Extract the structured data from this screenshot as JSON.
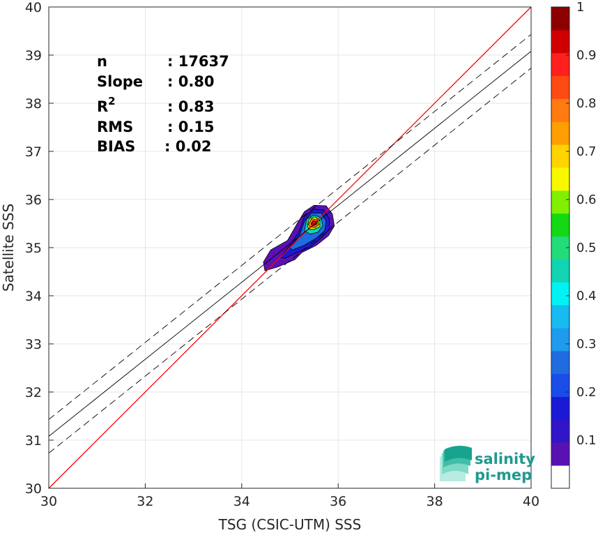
{
  "chart_data": {
    "type": "scatter",
    "title": "",
    "xlabel": "TSG (CSIC-UTM) SSS",
    "ylabel": "Satellite SSS",
    "xlim": [
      30,
      40
    ],
    "ylim": [
      30,
      40
    ],
    "x_ticks": [
      "30",
      "32",
      "34",
      "36",
      "38",
      "40"
    ],
    "y_ticks": [
      "30",
      "31",
      "32",
      "33",
      "34",
      "35",
      "36",
      "37",
      "38",
      "39",
      "40"
    ],
    "grid": true,
    "stats": [
      {
        "label": "n",
        "value": ": 17637"
      },
      {
        "label": "Slope",
        "value": ": 0.80"
      },
      {
        "label": "R",
        "sup": "2",
        "value": ": 0.83"
      },
      {
        "label": "RMS",
        "value": ": 0.15"
      },
      {
        "label": "BIAS",
        "value": ": 0.02"
      }
    ],
    "lines": [
      {
        "name": "identity",
        "color": "#ff0000",
        "style": "solid",
        "x": [
          30,
          40
        ],
        "y": [
          30,
          40
        ]
      },
      {
        "name": "regression",
        "color": "#000000",
        "style": "solid",
        "x": [
          30,
          40
        ],
        "y": [
          31.08,
          39.08
        ]
      },
      {
        "name": "regression-upper",
        "color": "#000000",
        "style": "dashed",
        "x": [
          30,
          40
        ],
        "y": [
          31.43,
          39.43
        ]
      },
      {
        "name": "regression-lower",
        "color": "#000000",
        "style": "dashed",
        "x": [
          30,
          40
        ],
        "y": [
          30.73,
          38.73
        ]
      }
    ],
    "density_contours": [
      {
        "level": 0.05,
        "color": "#5a11b4",
        "points": [
          [
            34.48,
            34.52
          ],
          [
            34.45,
            34.7
          ],
          [
            34.6,
            34.95
          ],
          [
            34.95,
            35.15
          ],
          [
            35.15,
            35.5
          ],
          [
            35.3,
            35.75
          ],
          [
            35.5,
            35.88
          ],
          [
            35.75,
            35.87
          ],
          [
            35.88,
            35.7
          ],
          [
            35.92,
            35.45
          ],
          [
            35.8,
            35.25
          ],
          [
            35.55,
            35.05
          ],
          [
            35.25,
            34.9
          ],
          [
            35.1,
            34.75
          ],
          [
            34.75,
            34.6
          ]
        ]
      },
      {
        "level": 0.15,
        "color": "#1a1ad6",
        "points": [
          [
            34.8,
            34.8
          ],
          [
            35.0,
            35.05
          ],
          [
            35.2,
            35.35
          ],
          [
            35.3,
            35.65
          ],
          [
            35.5,
            35.8
          ],
          [
            35.7,
            35.78
          ],
          [
            35.82,
            35.6
          ],
          [
            35.82,
            35.38
          ],
          [
            35.65,
            35.2
          ],
          [
            35.4,
            35.0
          ],
          [
            35.15,
            34.9
          ],
          [
            34.9,
            34.78
          ]
        ]
      },
      {
        "level": 0.25,
        "color": "#1f6ce0",
        "points": [
          [
            35.0,
            35.0
          ],
          [
            35.2,
            35.25
          ],
          [
            35.3,
            35.55
          ],
          [
            35.45,
            35.72
          ],
          [
            35.65,
            35.72
          ],
          [
            35.75,
            35.55
          ],
          [
            35.72,
            35.35
          ],
          [
            35.55,
            35.2
          ],
          [
            35.3,
            35.05
          ],
          [
            35.05,
            34.95
          ]
        ]
      },
      {
        "level": 0.4,
        "color": "#10d4b4",
        "points": [
          [
            35.3,
            35.35
          ],
          [
            35.35,
            35.6
          ],
          [
            35.5,
            35.68
          ],
          [
            35.65,
            35.62
          ],
          [
            35.68,
            35.45
          ],
          [
            35.58,
            35.32
          ],
          [
            35.42,
            35.28
          ]
        ]
      },
      {
        "level": 0.6,
        "color": "#dcf000",
        "points": [
          [
            35.36,
            35.45
          ],
          [
            35.4,
            35.6
          ],
          [
            35.52,
            35.64
          ],
          [
            35.62,
            35.56
          ],
          [
            35.62,
            35.43
          ],
          [
            35.5,
            35.38
          ],
          [
            35.4,
            35.38
          ]
        ]
      },
      {
        "level": 0.8,
        "color": "#ff7a10",
        "points": [
          [
            35.38,
            35.48
          ],
          [
            35.45,
            35.6
          ],
          [
            35.56,
            35.58
          ],
          [
            35.6,
            35.48
          ],
          [
            35.52,
            35.42
          ],
          [
            35.42,
            35.43
          ]
        ]
      },
      {
        "level": 0.95,
        "color": "#d00000",
        "points": [
          [
            35.44,
            35.5
          ],
          [
            35.48,
            35.56
          ],
          [
            35.54,
            35.55
          ],
          [
            35.56,
            35.49
          ],
          [
            35.5,
            35.46
          ],
          [
            35.45,
            35.47
          ]
        ]
      }
    ],
    "colorbar": {
      "min": 0,
      "max": 1,
      "tick_labels": [
        "0.1",
        "0.2",
        "0.3",
        "0.4",
        "0.5",
        "0.6",
        "0.7",
        "0.8",
        "0.9",
        "1"
      ],
      "colors": [
        "#ffffff",
        "#5a11b4",
        "#3215c8",
        "#1a1ad6",
        "#1a4ce8",
        "#1f6ce0",
        "#1e9aee",
        "#16bbf0",
        "#00f2f2",
        "#10d4b4",
        "#22dc7a",
        "#14d814",
        "#80f000",
        "#f8f800",
        "#ffd400",
        "#ff9e00",
        "#ff7a10",
        "#ff4a14",
        "#ff1f1f",
        "#d00000",
        "#8c0000"
      ]
    },
    "logo": {
      "line1": "salinity",
      "line2": "pi-mep"
    }
  }
}
